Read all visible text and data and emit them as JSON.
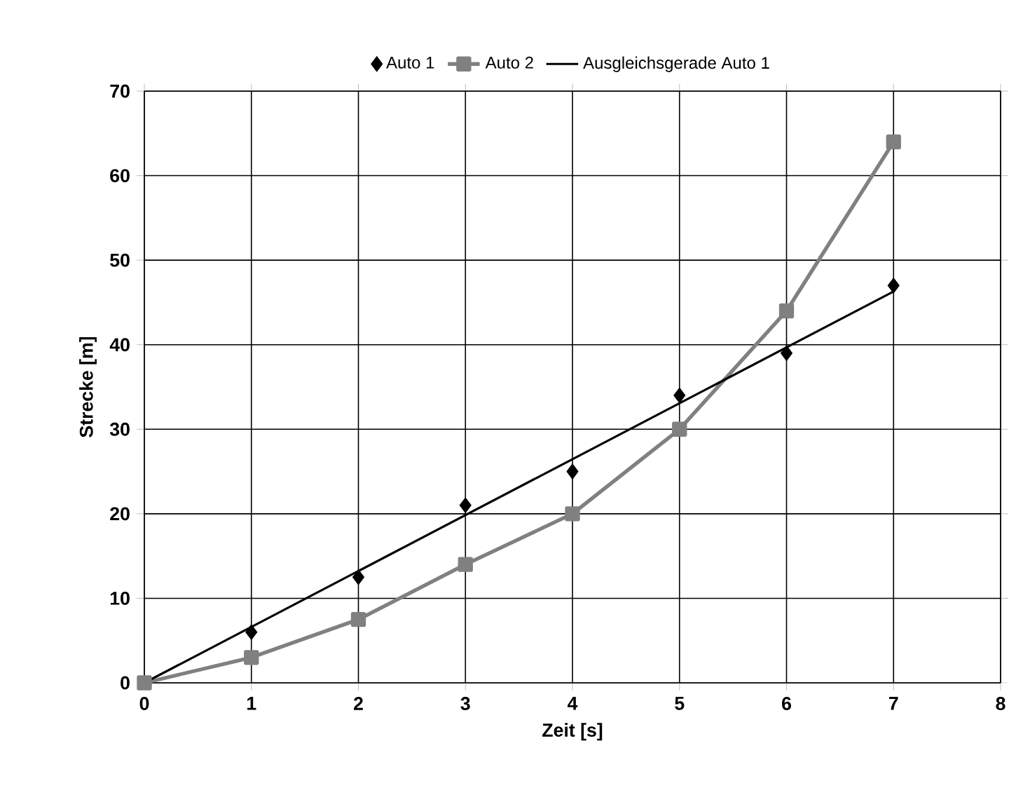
{
  "chart_data": {
    "type": "line",
    "xlabel": "Zeit [s]",
    "ylabel": "Strecke [m]",
    "x": [
      0,
      1,
      2,
      3,
      4,
      5,
      6,
      7
    ],
    "series": [
      {
        "name": "Auto 1",
        "type": "scatter",
        "marker": "diamond",
        "color": "#000000",
        "values": [
          null,
          6,
          12.5,
          21,
          25,
          34,
          39,
          47
        ]
      },
      {
        "name": "Auto 2",
        "type": "line",
        "marker": "square",
        "color": "#808080",
        "values": [
          0,
          3,
          7.5,
          14,
          20,
          30,
          44,
          64
        ]
      },
      {
        "name": "Ausgleichsgerade Auto 1",
        "marker": "none",
        "color": "#000000",
        "x": [
          0,
          7
        ],
        "values": [
          0,
          46.3
        ]
      }
    ],
    "xlim": [
      0,
      8
    ],
    "ylim": [
      0,
      70
    ],
    "xticks": [
      0,
      1,
      2,
      3,
      4,
      5,
      6,
      7,
      8
    ],
    "yticks": [
      0,
      10,
      20,
      30,
      40,
      50,
      60,
      70
    ],
    "grid": true,
    "legend": "top"
  }
}
